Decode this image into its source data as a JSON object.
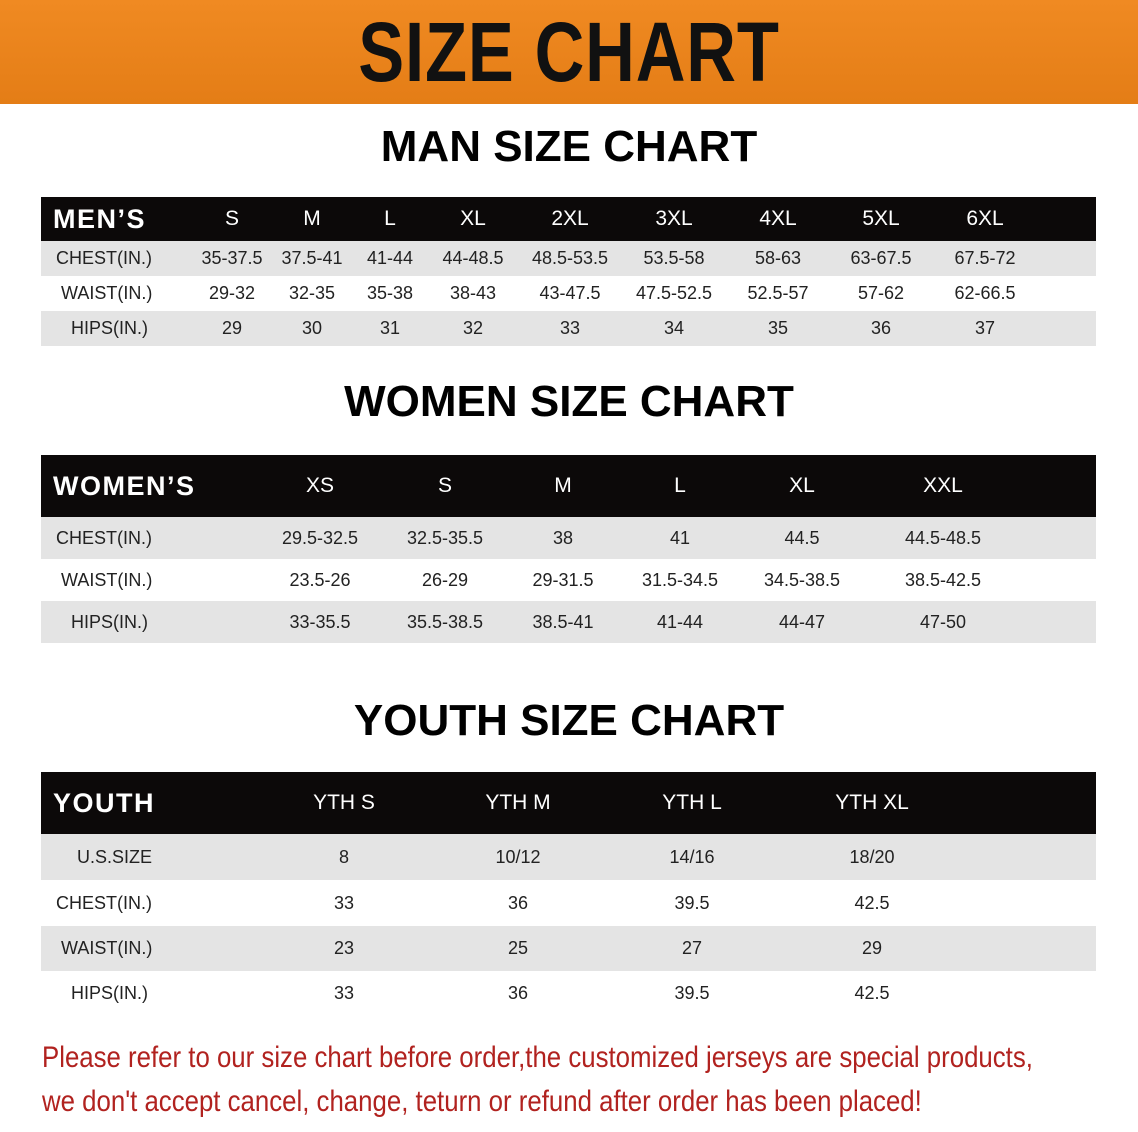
{
  "title": "SIZE CHART",
  "colors": {
    "banner": "#e98419",
    "header_row": "#0c0909",
    "note": "#b1221f"
  },
  "men": {
    "heading": "MAN SIZE CHART",
    "header": "MEN’S",
    "sizes": [
      "S",
      "M",
      "L",
      "XL",
      "2XL",
      "3XL",
      "4XL",
      "5XL",
      "6XL"
    ],
    "rows": [
      {
        "label": "CHEST(IN.)",
        "values": [
          "35-37.5",
          "37.5-41",
          "41-44",
          "44-48.5",
          "48.5-53.5",
          "53.5-58",
          "58-63",
          "63-67.5",
          "67.5-72"
        ]
      },
      {
        "label": "WAIST(IN.)",
        "values": [
          "29-32",
          "32-35",
          "35-38",
          "38-43",
          "43-47.5",
          "47.5-52.5",
          "52.5-57",
          "57-62",
          "62-66.5"
        ]
      },
      {
        "label": "HIPS(IN.)",
        "values": [
          "29",
          "30",
          "31",
          "32",
          "33",
          "34",
          "35",
          "36",
          "37"
        ]
      }
    ]
  },
  "women": {
    "heading": "WOMEN SIZE CHART",
    "header": "WOMEN’S",
    "sizes": [
      "XS",
      "S",
      "M",
      "L",
      "XL",
      "XXL"
    ],
    "rows": [
      {
        "label": "CHEST(IN.)",
        "values": [
          "29.5-32.5",
          "32.5-35.5",
          "38",
          "41",
          "44.5",
          "44.5-48.5"
        ]
      },
      {
        "label": "WAIST(IN.)",
        "values": [
          "23.5-26",
          "26-29",
          "29-31.5",
          "31.5-34.5",
          "34.5-38.5",
          "38.5-42.5"
        ]
      },
      {
        "label": "HIPS(IN.)",
        "values": [
          "33-35.5",
          "35.5-38.5",
          "38.5-41",
          "41-44",
          "44-47",
          "47-50"
        ]
      }
    ]
  },
  "youth": {
    "heading": "YOUTH SIZE CHART",
    "header": "YOUTH",
    "sizes": [
      "YTH S",
      "YTH M",
      "YTH L",
      "YTH XL"
    ],
    "rows": [
      {
        "label": "U.S.SIZE",
        "values": [
          "8",
          "10/12",
          "14/16",
          "18/20"
        ]
      },
      {
        "label": "CHEST(IN.)",
        "values": [
          "33",
          "36",
          "39.5",
          "42.5"
        ]
      },
      {
        "label": "WAIST(IN.)",
        "values": [
          "23",
          "25",
          "27",
          "29"
        ]
      },
      {
        "label": "HIPS(IN.)",
        "values": [
          "33",
          "36",
          "39.5",
          "42.5"
        ]
      }
    ]
  },
  "note": {
    "line1": "Please refer to our size chart before order,the customized jerseys are special products,",
    "line2": "we don't accept cancel, change, teturn or refund after order has been placed!"
  }
}
